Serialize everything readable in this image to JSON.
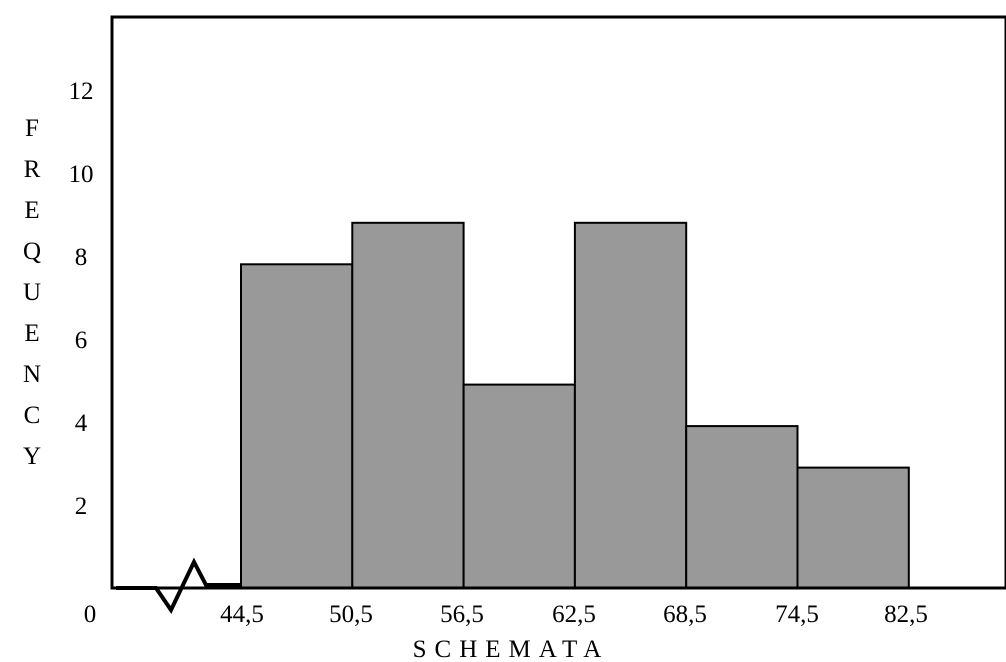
{
  "chart_data": {
    "type": "bar",
    "xlabel": "SCHEMATA",
    "ylabel": "FREQUENCY",
    "origin_label": "0",
    "x_ticks": [
      "44,5",
      "50,5",
      "56,5",
      "62,5",
      "68,5",
      "74,5",
      "82,5"
    ],
    "y_ticks": [
      "2",
      "4",
      "6",
      "8",
      "10",
      "12"
    ],
    "ylim": [
      0,
      13.6
    ],
    "bins": [
      {
        "from": "44,5",
        "to": "50,5",
        "value": 7.8
      },
      {
        "from": "50,5",
        "to": "56,5",
        "value": 8.8
      },
      {
        "from": "56,5",
        "to": "62,5",
        "value": 4.9
      },
      {
        "from": "62,5",
        "to": "68,5",
        "value": 8.8
      },
      {
        "from": "68,5",
        "to": "74,5",
        "value": 3.9
      },
      {
        "from": "74,5",
        "to": "82,5",
        "value": 2.9
      }
    ],
    "bar_color": "#999999",
    "grid": false,
    "axis_break": true
  }
}
